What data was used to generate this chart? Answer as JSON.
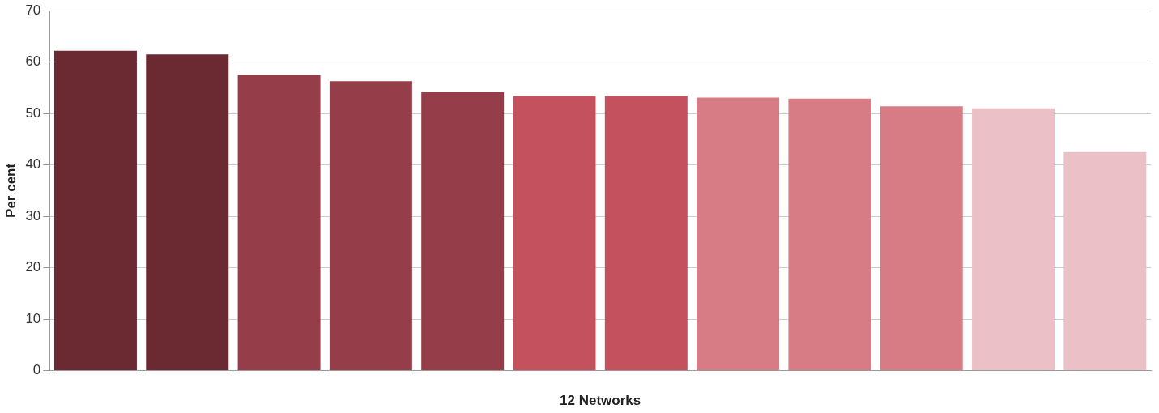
{
  "chart_data": {
    "type": "bar",
    "xlabel": "12 Networks",
    "ylabel": "Per cent",
    "categories": [
      null,
      null,
      null,
      null,
      null,
      null,
      null,
      null,
      null,
      null,
      null,
      null
    ],
    "values": [
      62.2,
      61.5,
      57.5,
      56.3,
      54.2,
      53.4,
      53.4,
      53.1,
      52.9,
      51.4,
      51.0,
      42.5
    ],
    "colors": [
      "#6b2932",
      "#6b2932",
      "#953d48",
      "#953d48",
      "#953d48",
      "#c4525e",
      "#c4525e",
      "#d77c85",
      "#d77c85",
      "#d77c85",
      "#ebc0c6",
      "#ebc0c6"
    ],
    "ylim": [
      0,
      70
    ],
    "yticks": [
      0,
      10,
      20,
      30,
      40,
      50,
      60,
      70
    ],
    "grid": "y",
    "legend": false
  }
}
